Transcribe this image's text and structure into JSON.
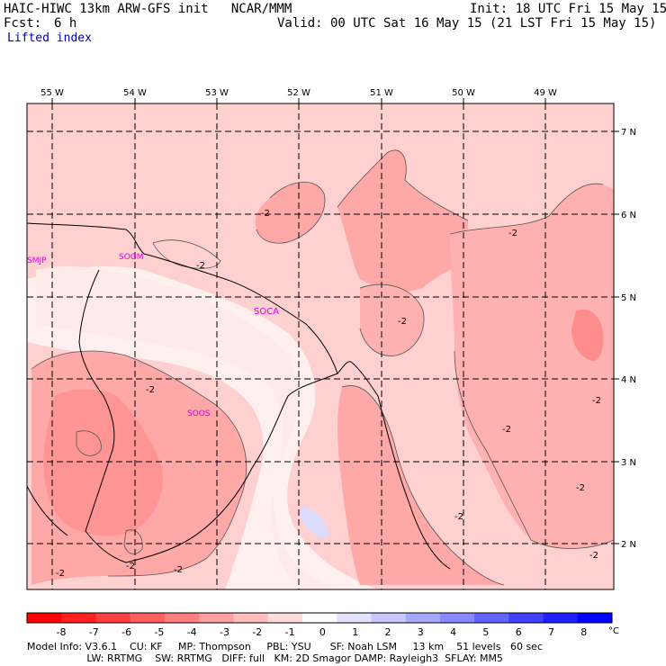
{
  "header": {
    "title": "HAIC-HIWC 13km ARW-GFS init   NCAR/MMM",
    "init": "Init: 18 UTC Fri 15 May 15",
    "fcst_label": "Fcst:",
    "fcst_value": "6 h",
    "valid": "Valid: 00 UTC Sat 16 May 15 (21 LST Fri 15 May 15)",
    "field": "Lifted index"
  },
  "map": {
    "lon_labels": [
      "55 W",
      "54 W",
      "53 W",
      "52 W",
      "51 W",
      "50 W",
      "49 W"
    ],
    "lat_labels": [
      "7 N",
      "6 N",
      "5 N",
      "4 N",
      "3 N",
      "2 N"
    ],
    "stations": [
      "SMJP",
      "SOGM",
      "SOCA",
      "SOOS"
    ],
    "contour_labels": [
      "-2",
      "-2",
      "-2",
      "-2",
      "-2",
      "-2",
      "-2",
      "-2",
      "-2",
      "-2",
      "-2",
      "-2",
      "-2"
    ]
  },
  "colorbar": {
    "ticks": [
      "-8",
      "-7",
      "-6",
      "-5",
      "-4",
      "-3",
      "-2",
      "-1",
      "0",
      "1",
      "2",
      "3",
      "4",
      "5",
      "6",
      "7",
      "8"
    ],
    "unit": "°C",
    "colors": [
      "#ff0000",
      "#ff2020",
      "#ff4040",
      "#ff6060",
      "#ff8080",
      "#ffa0a0",
      "#ffbdbd",
      "#ffdcdc",
      "#ffffff",
      "#e4e4ff",
      "#c8c8ff",
      "#a8a8ff",
      "#8888ff",
      "#6464ff",
      "#4040ff",
      "#2020ff",
      "#0000ff"
    ]
  },
  "footer": {
    "line1": "Model Info: V3.6.1    CU: KF     MP: Thompson     PBL: YSU      SF: Noah LSM     13 km    51 levels   60 sec",
    "line2": "                   LW: RRTMG    SW: RRTMG   DIFF: full   KM: 2D Smagor DAMP: Rayleigh3  SFLAY: MM5"
  }
}
